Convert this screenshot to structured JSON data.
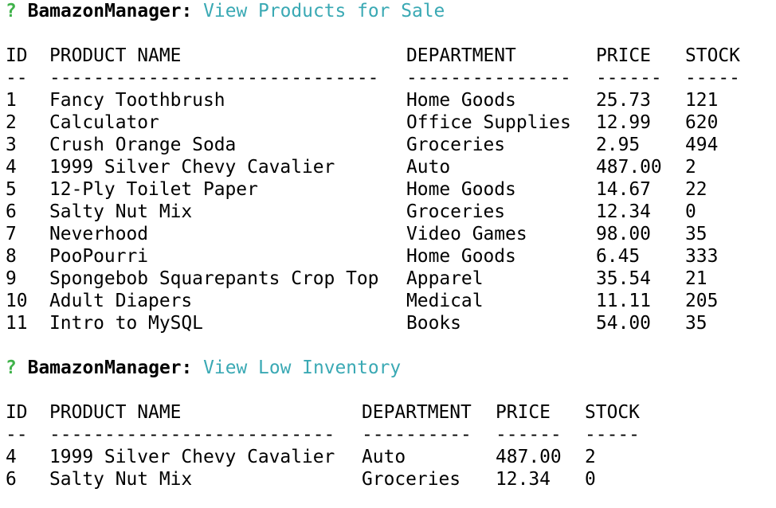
{
  "colors": {
    "prompt_mark": "#3fb24a",
    "answer_text": "#3aa9b4",
    "text": "#000000",
    "background": "#ffffff"
  },
  "session": [
    {
      "prompt": {
        "mark": "?",
        "label": "BamazonManager:",
        "answer": "View Products for Sale"
      },
      "table": {
        "headers": [
          "ID",
          "PRODUCT NAME",
          "DEPARTMENT",
          "PRICE",
          "STOCK"
        ],
        "separators": [
          "--",
          "------------------------------",
          "---------------",
          "------",
          "-----"
        ],
        "rows": [
          [
            "1",
            "Fancy Toothbrush",
            "Home Goods",
            "25.73",
            "121"
          ],
          [
            "2",
            "Calculator",
            "Office Supplies",
            "12.99",
            "620"
          ],
          [
            "3",
            "Crush Orange Soda",
            "Groceries",
            "2.95",
            "494"
          ],
          [
            "4",
            "1999 Silver Chevy Cavalier",
            "Auto",
            "487.00",
            "2"
          ],
          [
            "5",
            "12-Ply Toilet Paper",
            "Home Goods",
            "14.67",
            "22"
          ],
          [
            "6",
            "Salty Nut Mix",
            "Groceries",
            "12.34",
            "0"
          ],
          [
            "7",
            "Neverhood",
            "Video Games",
            "98.00",
            "35"
          ],
          [
            "8",
            "PooPourri",
            "Home Goods",
            "6.45",
            "333"
          ],
          [
            "9",
            "Spongebob Squarepants Crop Top",
            "Apparel",
            "35.54",
            "21"
          ],
          [
            "10",
            "Adult Diapers",
            "Medical",
            "11.11",
            "205"
          ],
          [
            "11",
            "Intro to MySQL",
            "Books",
            "54.00",
            "35"
          ]
        ]
      }
    },
    {
      "prompt": {
        "mark": "?",
        "label": "BamazonManager:",
        "answer": "View Low Inventory"
      },
      "table": {
        "headers": [
          "ID",
          "PRODUCT NAME",
          "DEPARTMENT",
          "PRICE",
          "STOCK"
        ],
        "separators": [
          "--",
          "--------------------------",
          "----------",
          "------",
          "-----"
        ],
        "rows": [
          [
            "4",
            "1999 Silver Chevy Cavalier",
            "Auto",
            "487.00",
            "2"
          ],
          [
            "6",
            "Salty Nut Mix",
            "Groceries",
            "12.34",
            "0"
          ]
        ]
      }
    }
  ]
}
